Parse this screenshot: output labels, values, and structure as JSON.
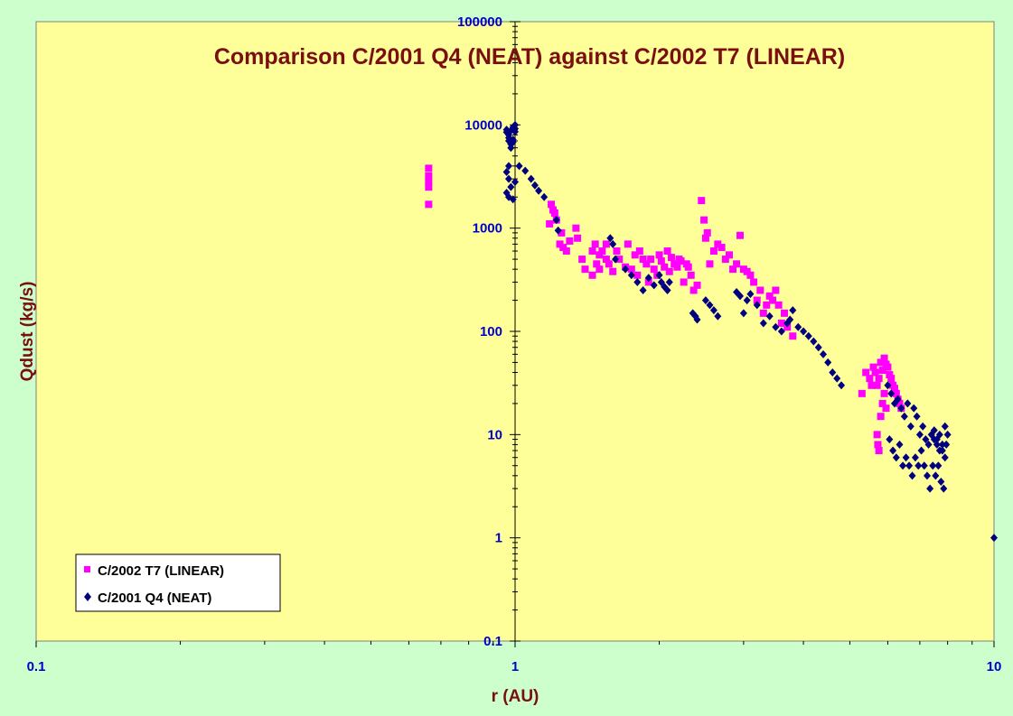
{
  "chart_data": {
    "type": "scatter",
    "title": "Comparison C/2001 Q4 (NEAT) against C/2002 T7 (LINEAR)",
    "xlabel": "r (AU)",
    "ylabel": "Qdust (kg/s)",
    "x_scale": "log",
    "y_scale": "log",
    "xlim": [
      0.1,
      10
    ],
    "ylim": [
      0.1,
      100000
    ],
    "x_ticks": [
      "0.1",
      "1",
      "10"
    ],
    "y_ticks": [
      "0.1",
      "1",
      "10",
      "100",
      "1000",
      "10000",
      "100000"
    ],
    "grid": false,
    "legend_position": "bottom-left",
    "colors": {
      "figure_bg": "#ccffcc",
      "plot_bg": "#ffff99",
      "title": "#7a0f0f",
      "ticks": "#0000cc",
      "linear": "#ff00ff",
      "neat": "#000080"
    },
    "series": [
      {
        "name": "C/2002 T7 (LINEAR)",
        "marker": "square",
        "color": "#ff00ff",
        "x": [
          0.66,
          0.66,
          0.66,
          0.66,
          0.66,
          1.18,
          1.19,
          1.2,
          1.21,
          1.22,
          1.24,
          1.25,
          1.26,
          1.28,
          1.3,
          1.34,
          1.35,
          1.38,
          1.4,
          1.45,
          1.45,
          1.47,
          1.48,
          1.5,
          1.5,
          1.52,
          1.55,
          1.55,
          1.57,
          1.6,
          1.63,
          1.65,
          1.7,
          1.72,
          1.75,
          1.78,
          1.8,
          1.82,
          1.85,
          1.88,
          1.9,
          1.92,
          1.95,
          1.98,
          2.0,
          2.02,
          2.05,
          2.08,
          2.1,
          2.12,
          2.15,
          2.18,
          2.2,
          2.22,
          2.25,
          2.28,
          2.3,
          2.33,
          2.36,
          2.4,
          2.45,
          2.48,
          2.5,
          2.52,
          2.55,
          2.6,
          2.65,
          2.7,
          2.75,
          2.8,
          2.85,
          2.9,
          2.95,
          3.0,
          3.05,
          3.1,
          3.15,
          3.2,
          3.25,
          3.3,
          3.35,
          3.4,
          3.45,
          3.5,
          3.55,
          3.6,
          3.65,
          3.7,
          3.8,
          5.3,
          5.4,
          5.5,
          5.55,
          5.6,
          5.65,
          5.7,
          5.75,
          5.8,
          5.85,
          5.9,
          5.95,
          6.0,
          6.05,
          6.1,
          6.15,
          6.2,
          6.25,
          6.3,
          6.35,
          6.4,
          5.7,
          5.72,
          5.75,
          5.8,
          5.85,
          5.9,
          5.95
        ],
        "y": [
          3800,
          3200,
          2800,
          2500,
          1700,
          1100,
          1700,
          1500,
          1400,
          1200,
          700,
          900,
          650,
          600,
          750,
          1000,
          800,
          500,
          400,
          600,
          350,
          700,
          450,
          550,
          400,
          600,
          700,
          500,
          450,
          380,
          600,
          500,
          420,
          700,
          400,
          550,
          350,
          600,
          500,
          450,
          300,
          500,
          400,
          350,
          550,
          480,
          420,
          600,
          380,
          520,
          450,
          420,
          500,
          480,
          300,
          450,
          420,
          350,
          250,
          280,
          1850,
          1200,
          800,
          900,
          450,
          600,
          700,
          650,
          500,
          550,
          400,
          450,
          850,
          400,
          380,
          350,
          300,
          200,
          250,
          150,
          180,
          220,
          200,
          250,
          180,
          120,
          150,
          110,
          90,
          25,
          40,
          35,
          30,
          45,
          40,
          30,
          35,
          50,
          42,
          55,
          48,
          45,
          38,
          35,
          30,
          28,
          25,
          22,
          20,
          18,
          10,
          8,
          7,
          15,
          20,
          25,
          18
        ],
        "y_note": "values estimated from log axes"
      },
      {
        "name": "C/2001 Q4 (NEAT)",
        "marker": "diamond",
        "color": "#000080",
        "x": [
          0.96,
          0.96,
          0.97,
          0.97,
          0.97,
          0.98,
          0.98,
          0.98,
          0.99,
          0.99,
          0.99,
          1.0,
          1.0,
          1.0,
          0.97,
          0.96,
          0.97,
          0.98,
          0.96,
          0.97,
          0.99,
          1.0,
          1.02,
          1.05,
          1.08,
          1.1,
          1.12,
          1.15,
          1.22,
          1.23,
          1.58,
          1.6,
          1.62,
          1.7,
          1.75,
          1.8,
          1.85,
          1.9,
          1.95,
          2.0,
          2.02,
          2.05,
          2.08,
          2.1,
          2.35,
          2.38,
          2.4,
          2.5,
          2.55,
          2.6,
          2.65,
          2.9,
          2.95,
          3.0,
          3.05,
          3.1,
          3.2,
          3.3,
          3.4,
          3.5,
          3.6,
          3.7,
          3.75,
          3.8,
          3.9,
          4.0,
          4.1,
          4.2,
          4.3,
          4.4,
          4.5,
          4.6,
          4.7,
          4.8,
          6.0,
          6.1,
          6.2,
          6.3,
          6.4,
          6.5,
          6.6,
          6.7,
          6.8,
          6.9,
          7.0,
          7.1,
          7.2,
          7.3,
          7.4,
          7.5,
          7.6,
          7.7,
          7.8,
          7.9,
          8.0,
          6.05,
          6.15,
          6.25,
          6.35,
          6.45,
          6.55,
          6.65,
          6.75,
          6.85,
          6.95,
          7.05,
          7.15,
          7.25,
          7.35,
          7.45,
          7.55,
          7.65,
          7.75,
          7.85,
          7.5,
          7.6,
          7.7,
          7.8,
          7.9,
          7.95,
          10.0
        ],
        "y": [
          9000,
          8500,
          8000,
          7500,
          7000,
          6500,
          6000,
          8800,
          9500,
          7200,
          6800,
          10000,
          9200,
          8600,
          4000,
          3500,
          3000,
          2500,
          2200,
          2000,
          1900,
          2800,
          4000,
          3600,
          3000,
          2600,
          2300,
          2000,
          1200,
          950,
          800,
          700,
          500,
          400,
          350,
          300,
          250,
          330,
          280,
          350,
          300,
          270,
          250,
          300,
          150,
          140,
          130,
          200,
          180,
          160,
          140,
          240,
          220,
          150,
          200,
          230,
          180,
          120,
          140,
          110,
          100,
          120,
          130,
          160,
          110,
          100,
          90,
          80,
          70,
          60,
          50,
          40,
          35,
          30,
          30,
          25,
          20,
          22,
          18,
          15,
          20,
          12,
          18,
          15,
          10,
          12,
          9,
          8,
          10,
          11,
          9,
          7,
          8,
          12,
          10,
          9,
          7,
          6,
          8,
          5,
          6,
          5,
          4,
          6,
          5,
          7,
          5,
          4,
          3,
          5,
          4,
          5,
          3.5,
          3,
          9,
          8,
          10,
          7,
          6,
          8,
          1
        ]
      }
    ]
  }
}
